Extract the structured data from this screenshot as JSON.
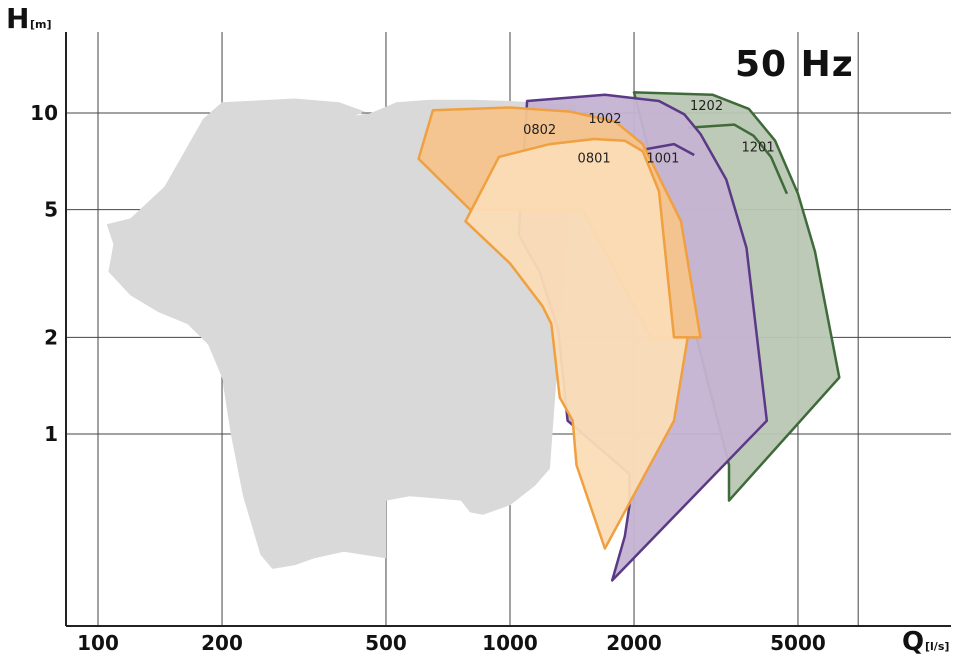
{
  "chart_data": {
    "type": "area",
    "annotation": "50 Hz",
    "x_axis": {
      "symbol": "Q",
      "unit": "[l/s]",
      "scale": "log",
      "range": [
        85,
        7700
      ],
      "ticks": [
        100,
        200,
        500,
        1000,
        2000,
        5000
      ],
      "tick_labels": [
        "100",
        "200",
        "500",
        "1000",
        "2000",
        "5000"
      ]
    },
    "y_axis": {
      "symbol": "H",
      "unit": "[m]",
      "scale": "log",
      "range": [
        0.33,
        20
      ],
      "ticks": [
        1,
        2,
        5,
        10
      ],
      "tick_labels": [
        "1",
        "2",
        "5",
        "10"
      ]
    },
    "grid": true,
    "series": [
      {
        "name": "",
        "color": "#d9d9d9",
        "fill": "#d9d9d9",
        "stroke": "none",
        "points": [
          [
            105,
            4.5
          ],
          [
            109,
            3.9
          ],
          [
            106,
            3.2
          ],
          [
            120,
            2.7
          ],
          [
            140,
            2.4
          ],
          [
            165,
            2.2
          ],
          [
            185,
            1.9
          ],
          [
            200,
            1.5
          ],
          [
            210,
            1.0
          ],
          [
            225,
            0.64
          ],
          [
            248,
            0.42
          ],
          [
            265,
            0.38
          ],
          [
            300,
            0.39
          ],
          [
            335,
            0.41
          ],
          [
            395,
            0.43
          ],
          [
            500,
            0.41
          ],
          [
            500,
            0.62
          ],
          [
            570,
            0.64
          ],
          [
            660,
            0.63
          ],
          [
            760,
            0.62
          ],
          [
            800,
            0.57
          ],
          [
            860,
            0.56
          ],
          [
            1000,
            0.6
          ],
          [
            1150,
            0.69
          ],
          [
            1250,
            0.78
          ],
          [
            1450,
            10.6
          ],
          [
            1000,
            10.9
          ],
          [
            810,
            11.0
          ],
          [
            640,
            11.0
          ],
          [
            530,
            10.8
          ],
          [
            460,
            10.0
          ],
          [
            420,
            9.8
          ],
          [
            445,
            10.1
          ],
          [
            385,
            10.8
          ],
          [
            300,
            11.1
          ],
          [
            200,
            10.8
          ],
          [
            180,
            9.6
          ],
          [
            145,
            5.9
          ],
          [
            120,
            4.7
          ]
        ]
      },
      {
        "name": "1202",
        "color": "#3f6a3a",
        "fill": "#b9c7b3",
        "stroke": "#3f6a3a",
        "points": [
          [
            2000,
            11.6
          ],
          [
            3100,
            11.4
          ],
          [
            3800,
            10.3
          ],
          [
            4400,
            8.2
          ],
          [
            5000,
            5.6
          ],
          [
            5500,
            3.7
          ],
          [
            6300,
            1.5
          ],
          [
            3400,
            0.62
          ],
          [
            3400,
            0.8
          ]
        ]
      },
      {
        "name": "1201",
        "color": "#3f6a3a",
        "fill": "#b9c7b3",
        "stroke": "#3f6a3a",
        "points": [
          [
            2700,
            9.0
          ],
          [
            3500,
            9.2
          ],
          [
            3900,
            8.5
          ],
          [
            4300,
            7.3
          ],
          [
            4700,
            5.6
          ]
        ]
      },
      {
        "name": "1002",
        "color": "#5a3a86",
        "fill": "#c5b3d2",
        "stroke": "#5a3a86",
        "points": [
          [
            1100,
            10.9
          ],
          [
            1700,
            11.4
          ],
          [
            2300,
            10.9
          ],
          [
            2650,
            9.9
          ],
          [
            2900,
            8.6
          ],
          [
            3350,
            6.2
          ],
          [
            3750,
            3.8
          ],
          [
            4200,
            1.1
          ],
          [
            1770,
            0.35
          ],
          [
            1900,
            0.48
          ],
          [
            1950,
            0.6
          ],
          [
            1950,
            0.75
          ],
          [
            1380,
            1.1
          ],
          [
            1310,
            2.1
          ],
          [
            1180,
            3.2
          ],
          [
            1080,
            3.9
          ],
          [
            1050,
            4.2
          ]
        ]
      },
      {
        "name": "1001",
        "color": "#5a3a86",
        "fill": "#c5b3d2",
        "stroke": "#5a3a86",
        "points": [
          [
            2000,
            7.6
          ],
          [
            2500,
            8.0
          ],
          [
            2800,
            7.4
          ]
        ]
      },
      {
        "name": "0802",
        "color": "#f0a040",
        "fill": "#f5c48c",
        "stroke": "#f0a040",
        "points": [
          [
            650,
            10.2
          ],
          [
            1000,
            10.4
          ],
          [
            1400,
            10.1
          ],
          [
            1800,
            9.4
          ],
          [
            2100,
            8.0
          ],
          [
            2600,
            4.6
          ],
          [
            2900,
            2.0
          ],
          [
            2200,
            2.0
          ],
          [
            1500,
            5.0
          ],
          [
            800,
            5.0
          ],
          [
            600,
            7.2
          ]
        ]
      },
      {
        "name": "0801",
        "color": "#f0a040",
        "fill": "#fbdcb6",
        "stroke": "#f0a040",
        "points": [
          [
            940,
            7.3
          ],
          [
            1250,
            8.0
          ],
          [
            1600,
            8.3
          ],
          [
            1900,
            8.2
          ],
          [
            2100,
            7.6
          ],
          [
            2300,
            5.7
          ],
          [
            2500,
            2.0
          ],
          [
            2700,
            2.0
          ],
          [
            2500,
            1.1
          ],
          [
            1700,
            0.44
          ],
          [
            1450,
            0.8
          ],
          [
            1420,
            1.1
          ],
          [
            1320,
            1.3
          ],
          [
            1260,
            2.2
          ],
          [
            1200,
            2.5
          ],
          [
            1000,
            3.4
          ],
          [
            780,
            4.6
          ]
        ]
      }
    ],
    "labels": [
      {
        "text": "0802",
        "x": 1180,
        "y": 8.6
      },
      {
        "text": "1002",
        "x": 1700,
        "y": 9.3
      },
      {
        "text": "1202",
        "x": 3000,
        "y": 10.2
      },
      {
        "text": "0801",
        "x": 1600,
        "y": 7.0
      },
      {
        "text": "1001",
        "x": 2350,
        "y": 7.0
      },
      {
        "text": "1201",
        "x": 4000,
        "y": 7.6
      }
    ]
  }
}
